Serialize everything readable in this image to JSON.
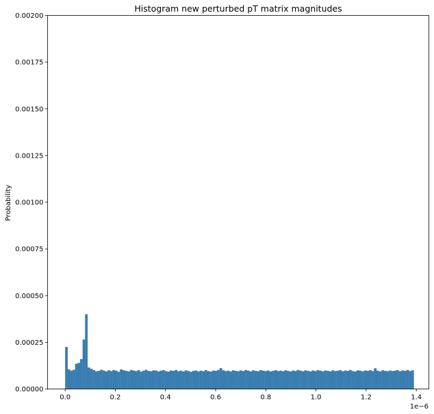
{
  "chart_data": {
    "type": "bar",
    "title": "Histogram new perturbed pT matrix magnitudes",
    "xlabel": "",
    "ylabel": "Probability",
    "x_offset_label": "1e−6",
    "x_scale": 1e-06,
    "xlim": [
      -0.07,
      1.45
    ],
    "ylim": [
      0,
      0.002
    ],
    "xticks": [
      0.0,
      0.2,
      0.4,
      0.6,
      0.8,
      1.0,
      1.2,
      1.4
    ],
    "xtick_labels": [
      "0.0",
      "0.2",
      "0.4",
      "0.6",
      "0.8",
      "1.0",
      "1.2",
      "1.4"
    ],
    "yticks": [
      0,
      0.00025,
      0.0005,
      0.00075,
      0.001,
      0.00125,
      0.0015,
      0.00175,
      0.002
    ],
    "ytick_labels": [
      "0.00000",
      "0.00025",
      "0.00050",
      "0.00075",
      "0.00100",
      "0.00125",
      "0.00150",
      "0.00175",
      "0.00200"
    ],
    "grid": false,
    "bar_color": "#3a7db0",
    "bin_range": [
      0.0,
      1.39
    ],
    "bin_count": 140,
    "series": [
      {
        "values": [
          0.000225,
          0.000105,
          9.8e-05,
          0.000103,
          0.000135,
          0.00014,
          0.00016,
          0.000265,
          0.0004,
          0.000115,
          0.000108,
          0.000101,
          9.5e-05,
          9.7e-05,
          0.000103,
          9.9e-05,
          9.4e-05,
          0.0001,
          9.6e-05,
          0.000101,
          9.8e-05,
          9.2e-05,
          0.000105,
          0.0001,
          9.7e-05,
          9.4e-05,
          0.000102,
          9.9e-05,
          9.6e-05,
          0.000101,
          9.3e-05,
          9.8e-05,
          0.000103,
          9.7e-05,
          9.5e-05,
          0.0001,
          9.9e-05,
          9.4e-05,
          9.8e-05,
          0.000101,
          9.6e-05,
          9.3e-05,
          9.9e-05,
          9.7e-05,
          0.000102,
          9.5e-05,
          9.8e-05,
          9.4e-05,
          0.0001,
          9.6e-05,
          9.2e-05,
          9.7e-05,
          9.9e-05,
          9.4e-05,
          9.8e-05,
          9.5e-05,
          0.000101,
          9.6e-05,
          9.3e-05,
          9.9e-05,
          9.7e-05,
          0.000102,
          0.000112,
          0.0001,
          9.6e-05,
          9.8e-05,
          9.4e-05,
          0.0001,
          9.7e-05,
          9.5e-05,
          9.9e-05,
          9.6e-05,
          0.000102,
          9.8e-05,
          9.4e-05,
          0.0001,
          9.7e-05,
          9.5e-05,
          0.000101,
          9.8e-05,
          9.6e-05,
          9.9e-05,
          9.4e-05,
          9.7e-05,
          0.000101,
          9.6e-05,
          9.8e-05,
          9.5e-05,
          0.0001,
          9.7e-05,
          9.4e-05,
          9.9e-05,
          9.6e-05,
          0.000102,
          9.8e-05,
          9.5e-05,
          0.0001,
          9.7e-05,
          9.4e-05,
          9.9e-05,
          9.6e-05,
          0.000101,
          9.8e-05,
          9.5e-05,
          9.9e-05,
          9.7e-05,
          9.4e-05,
          0.0001,
          9.6e-05,
          9.8e-05,
          0.000101,
          9.5e-05,
          9.9e-05,
          9.7e-05,
          0.000102,
          9.6e-05,
          9.4e-05,
          0.0001,
          9.8e-05,
          9.5e-05,
          9.9e-05,
          9.7e-05,
          0.000101,
          9.6e-05,
          0.000111,
          9.8e-05,
          9.4e-05,
          0.0001,
          9.7e-05,
          9.5e-05,
          9.9e-05,
          9.6e-05,
          9.8e-05,
          0.000101,
          9.5e-05,
          9.9e-05,
          9.7e-05,
          0.000102,
          9.6e-05,
          0.0001
        ]
      }
    ]
  }
}
